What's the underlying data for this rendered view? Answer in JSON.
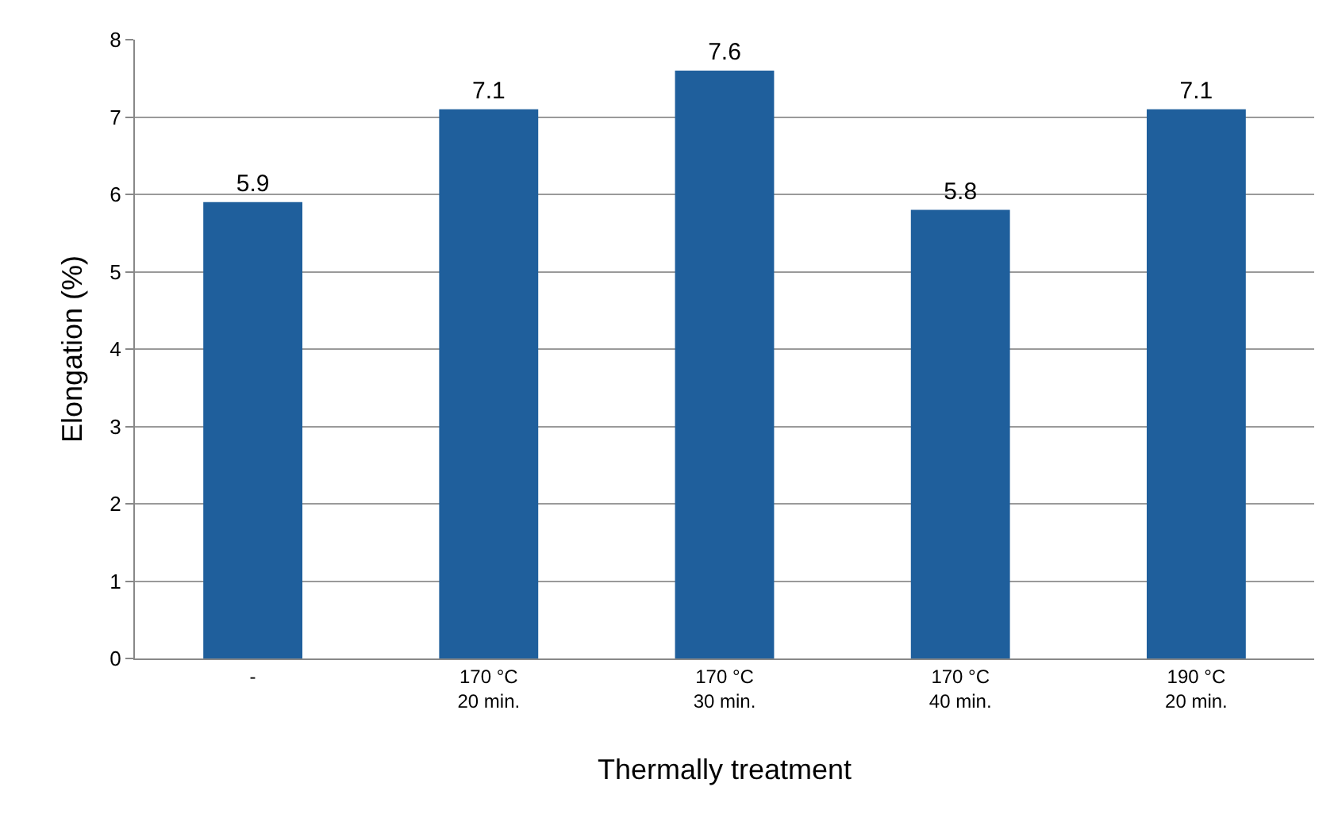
{
  "chart_data": {
    "type": "bar",
    "xlabel": "Thermally treatment",
    "ylabel": "Elongation (%)",
    "categories": [
      "-",
      "170 °C\n20 min.",
      "170 °C\n30 min.",
      "170 °C\n40 min.",
      "190 °C\n20 min."
    ],
    "values": [
      5.9,
      7.1,
      7.6,
      5.8,
      7.1
    ],
    "color": "#1f5f9c",
    "ylim": [
      0,
      8
    ],
    "yticks": [
      0,
      1,
      2,
      3,
      4,
      5,
      6,
      7,
      8
    ],
    "grid": "y",
    "data_labels": true,
    "legend": false
  }
}
